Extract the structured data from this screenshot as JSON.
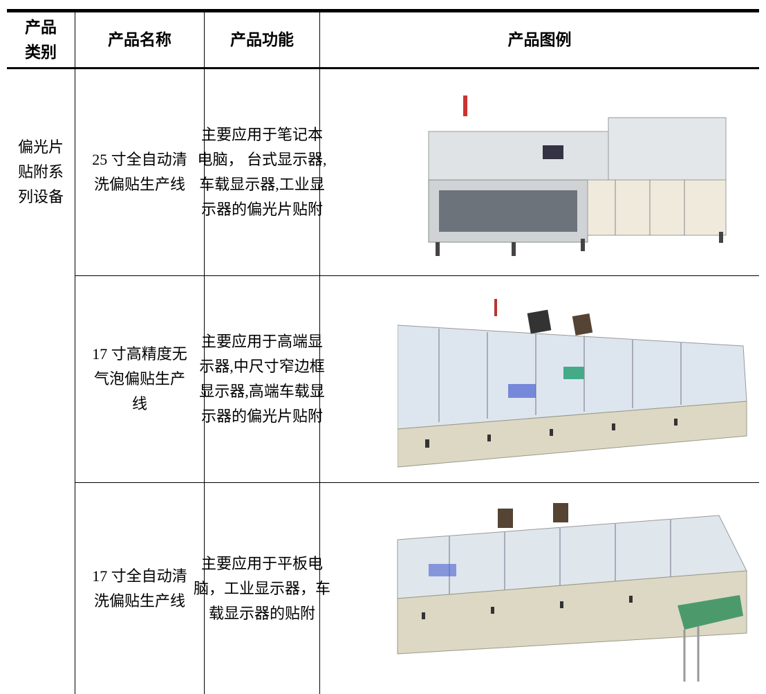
{
  "table": {
    "header": {
      "category": [
        "产品",
        "类别"
      ],
      "name": "产品名称",
      "function": "产品功能",
      "image": "产品图例"
    },
    "category": [
      "偏光片",
      "贴附系",
      "列设备"
    ],
    "rows": [
      {
        "name": [
          "25 寸全自动清",
          "洗偏贴生产线"
        ],
        "function": [
          "主要应用于笔记本",
          "电脑， 台式显示器,",
          "车载显示器,工业显",
          "示器的偏光片贴附"
        ]
      },
      {
        "name": [
          "17 寸高精度无",
          "气泡偏贴生产",
          "线"
        ],
        "function": [
          "主要应用于高端显",
          "示器,中尺寸窄边框",
          "显示器,高端车载显",
          "示器的偏光片贴附"
        ]
      },
      {
        "name": [
          "17 寸全自动清",
          "洗偏贴生产线"
        ],
        "function": [
          "主要应用于平板电",
          "脑，工业显示器，车",
          "载显示器的贴附"
        ]
      }
    ]
  }
}
